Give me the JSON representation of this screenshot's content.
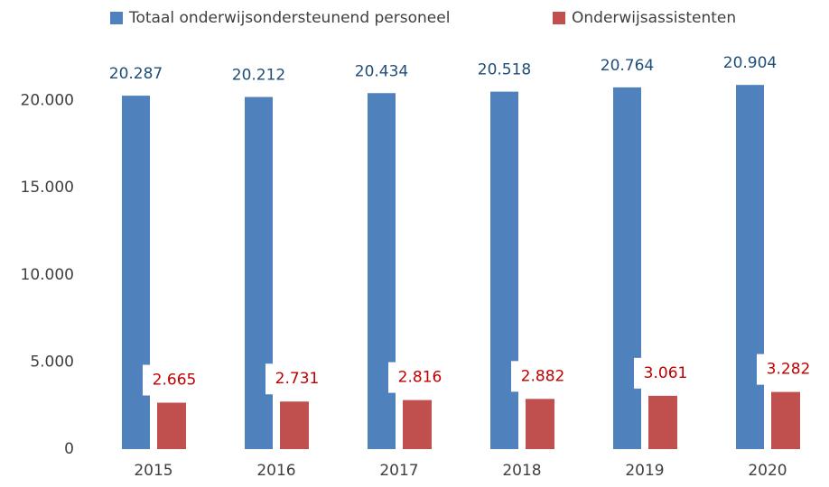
{
  "chart_data": {
    "type": "bar",
    "categories": [
      "2015",
      "2016",
      "2017",
      "2018",
      "2019",
      "2020"
    ],
    "series": [
      {
        "name": "Totaal onderwijsondersteunend personeel",
        "color": "#4f81bd",
        "values": [
          20287,
          20212,
          20434,
          20518,
          20764,
          20904
        ],
        "value_labels": [
          "20.287",
          "20.212",
          "20.434",
          "20.518",
          "20.764",
          "20.904"
        ]
      },
      {
        "name": "Onderwijsassistenten",
        "color": "#c0504d",
        "values": [
          2665,
          2731,
          2816,
          2882,
          3061,
          3282
        ],
        "value_labels": [
          "2.665",
          "2.731",
          "2.816",
          "2.882",
          "3.061",
          "3.282"
        ]
      }
    ],
    "ylim": [
      0,
      22000
    ],
    "yticks": [
      0,
      {
        "value": 5000,
        "label": "5.000"
      },
      {
        "value": 10000,
        "label": "10.000"
      },
      {
        "value": 15000,
        "label": "15.000"
      },
      {
        "value": 20000,
        "label": "20.000"
      }
    ],
    "grid": false,
    "legend": "top"
  }
}
